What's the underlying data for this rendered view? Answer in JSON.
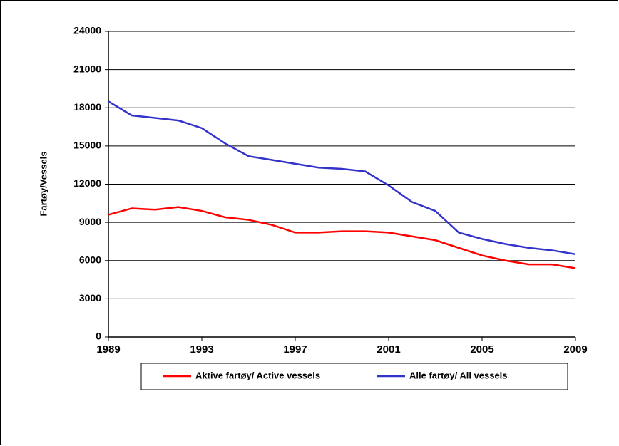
{
  "chart_data": {
    "type": "line",
    "y_label": "Fartøy/Vessels",
    "x": [
      1989,
      1990,
      1991,
      1992,
      1993,
      1994,
      1995,
      1996,
      1997,
      1998,
      1999,
      2000,
      2001,
      2002,
      2003,
      2004,
      2005,
      2006,
      2007,
      2008,
      2009
    ],
    "series": [
      {
        "name": "Aktive fartøy/ Active vessels",
        "color": "#ff0000",
        "values": [
          9600,
          10100,
          10000,
          10200,
          9900,
          9400,
          9200,
          8800,
          8200,
          8200,
          8300,
          8300,
          8200,
          7900,
          7600,
          7000,
          6400,
          6000,
          5700,
          5700,
          5400
        ]
      },
      {
        "name": "Alle fartøy/ All vessels",
        "color": "#3333cc",
        "values": [
          18500,
          17400,
          17200,
          17000,
          16400,
          15200,
          14200,
          13900,
          13600,
          13300,
          13200,
          13000,
          11900,
          10600,
          9900,
          8200,
          7700,
          7300,
          7000,
          6800,
          6500
        ]
      }
    ],
    "xlim": [
      1989,
      2009
    ],
    "xticks": [
      1989,
      1993,
      1997,
      2001,
      2005,
      2009
    ],
    "ylim": [
      0,
      24000
    ],
    "yticks": [
      0,
      3000,
      6000,
      9000,
      12000,
      15000,
      18000,
      21000,
      24000
    ],
    "grid": true,
    "legend": "bottom"
  }
}
